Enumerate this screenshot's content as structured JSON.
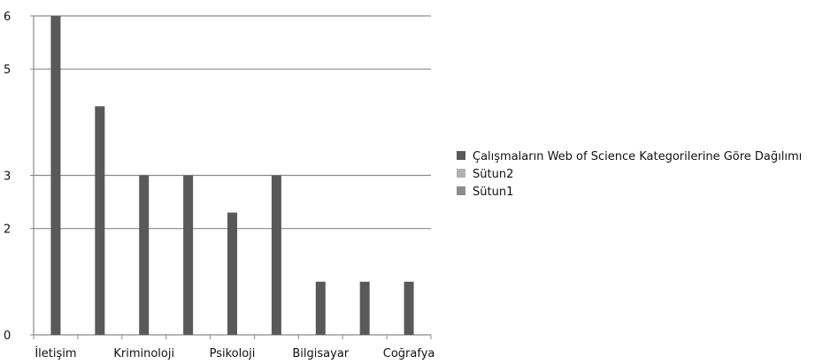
{
  "chart_data": {
    "type": "bar",
    "title": "",
    "xlabel": "",
    "ylabel": "",
    "categories_all": [
      "İletişim",
      "",
      "Kriminoloji",
      "",
      "Psikoloji",
      "",
      "Bilgisayar",
      "",
      "Coğrafya"
    ],
    "series": [
      {
        "name": "Çalışmaların Web of Science Kategorilerine Göre Dağılımı",
        "color": "#595959",
        "values": [
          6,
          4.3,
          3,
          3,
          2.3,
          3,
          1,
          1,
          1
        ]
      },
      {
        "name": "Sütun2",
        "color": "#b2b2b2",
        "values": []
      },
      {
        "name": "Sütun1",
        "color": "#8c8c8c",
        "values": []
      }
    ],
    "y_axis": {
      "min": 0,
      "max": 6,
      "gridlines": [
        0,
        2,
        3,
        5,
        6
      ]
    },
    "grid": true,
    "legend_position": "right"
  }
}
